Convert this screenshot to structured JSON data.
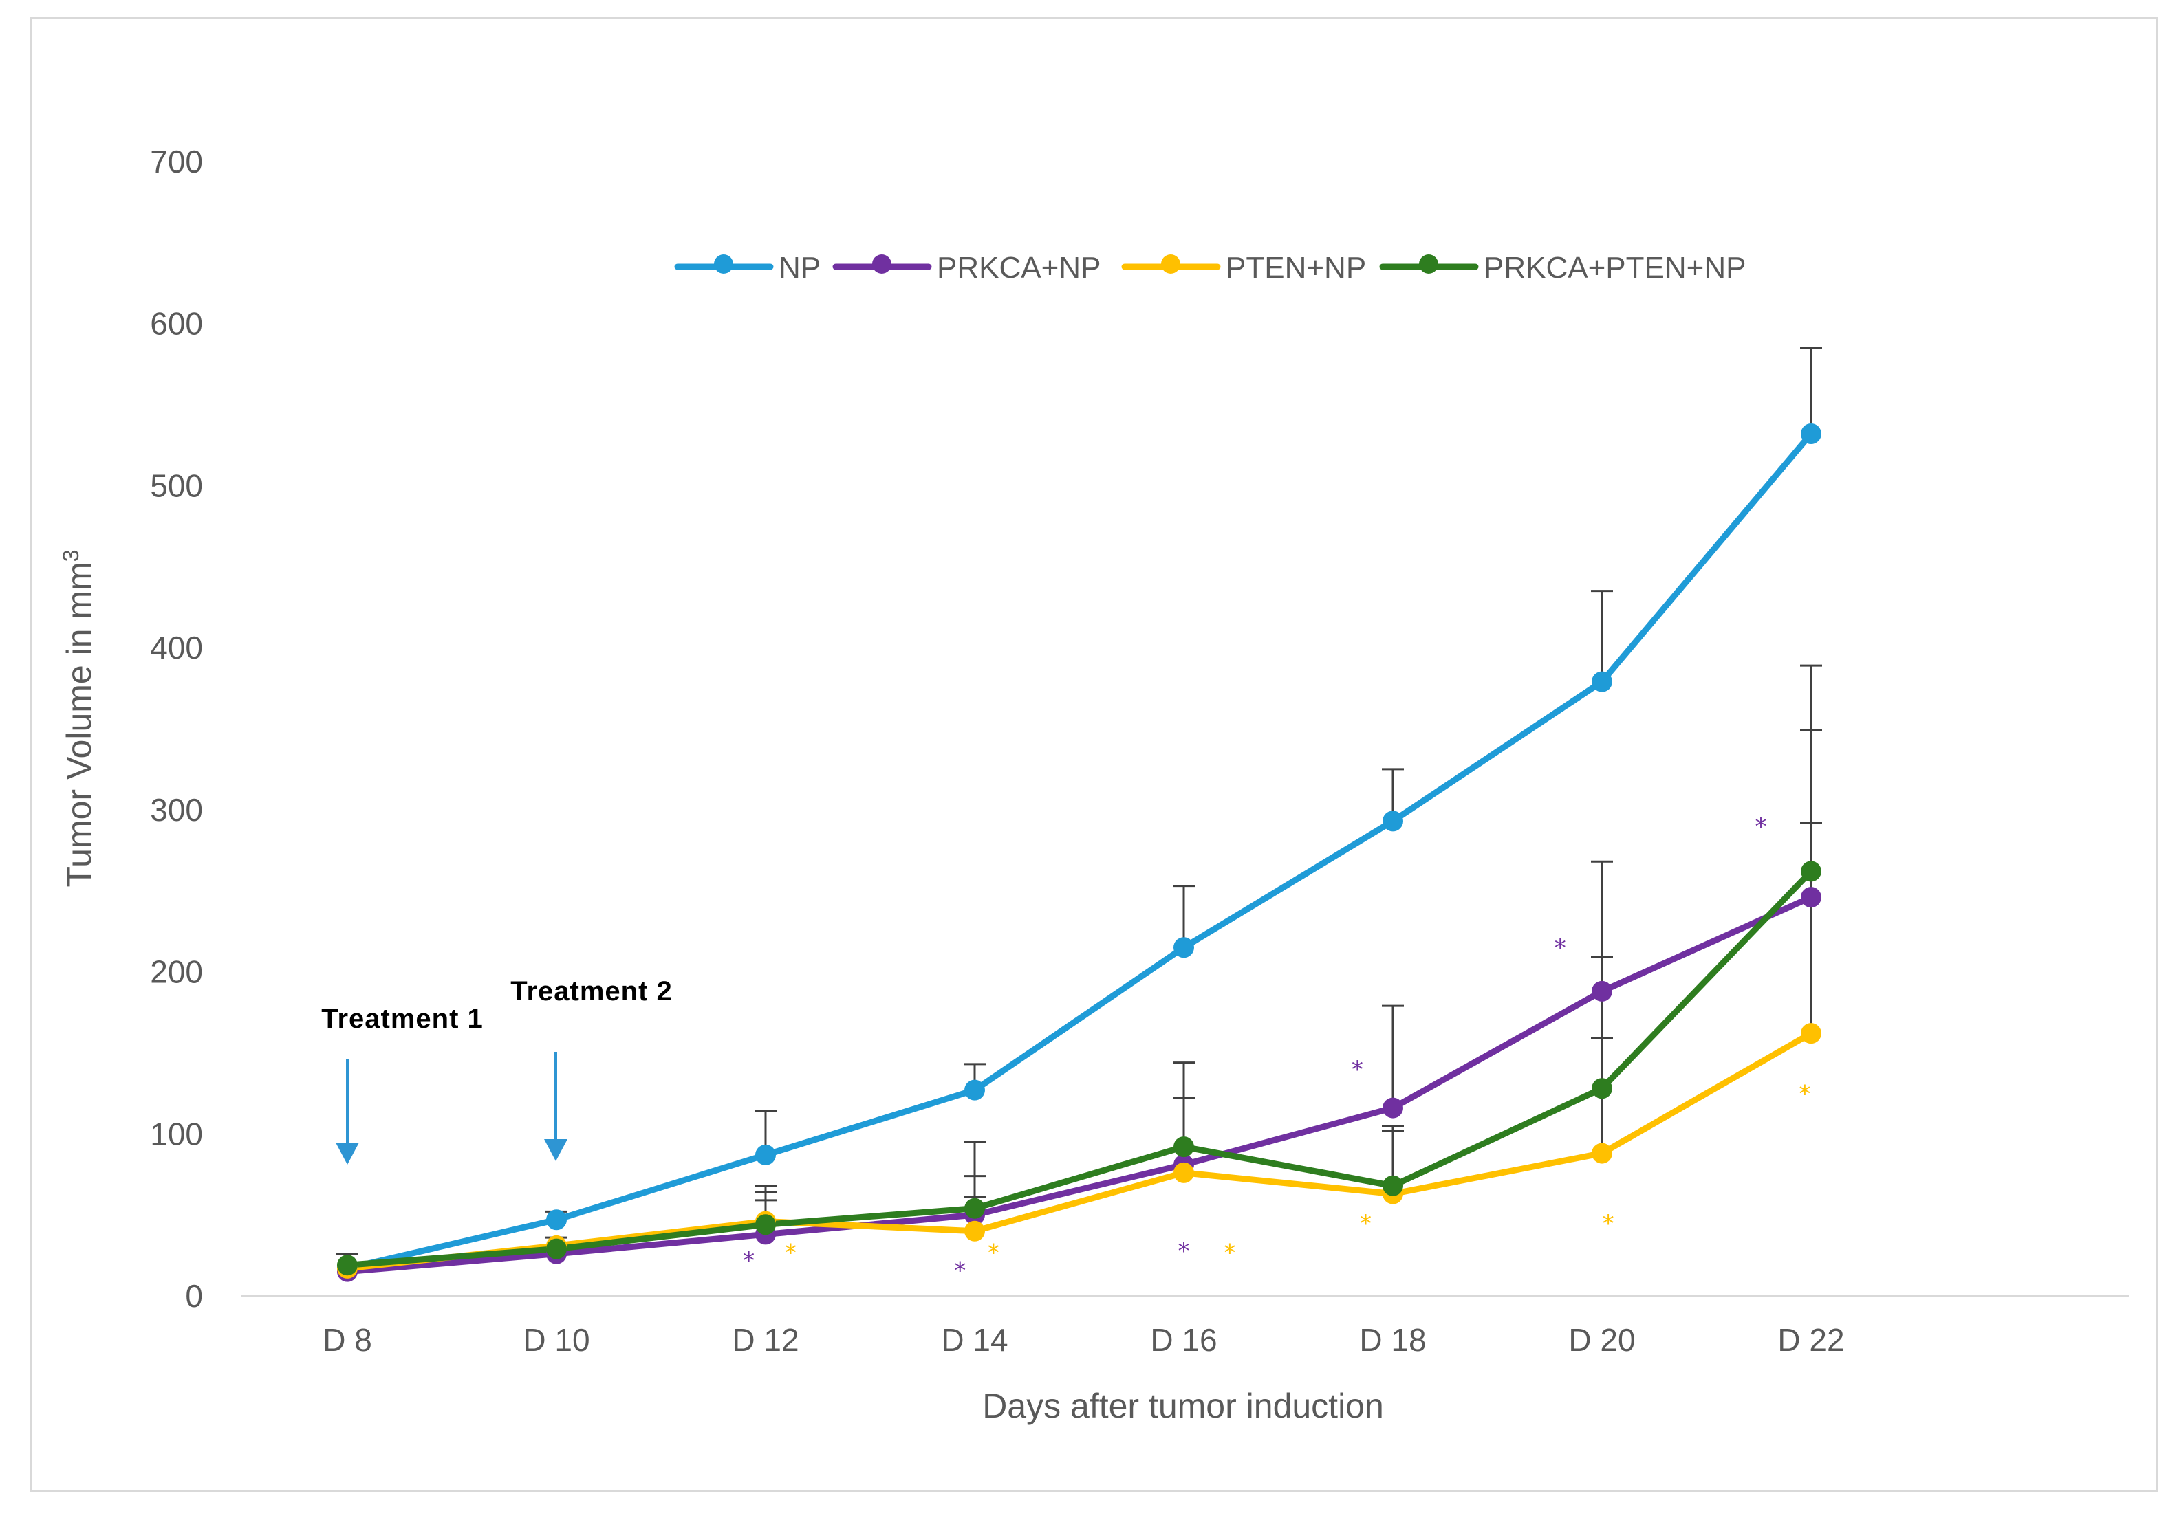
{
  "chart_data": {
    "type": "line",
    "title": "",
    "xlabel": "Days after tumor induction",
    "ylabel": "Tumor Volume in mm",
    "ylabel_superscript": "3",
    "categories": [
      "D 8",
      "D 10",
      "D 12",
      "D 14",
      "D 16",
      "D 18",
      "D 20",
      "D 22"
    ],
    "ylim": [
      0,
      700
    ],
    "yticks": [
      0,
      100,
      200,
      300,
      400,
      500,
      600,
      700
    ],
    "grid": false,
    "legend_position": "top",
    "series": [
      {
        "name": "NP",
        "color": "#1f9bd7",
        "values": [
          17,
          47,
          87,
          127,
          215,
          293,
          379,
          532
        ],
        "error_upper": [
          null,
          52,
          114,
          143,
          253,
          325,
          435,
          585
        ]
      },
      {
        "name": "PRKCA+NP",
        "color": "#7030a0",
        "values": [
          15,
          26,
          38,
          50,
          81,
          116,
          188,
          246
        ],
        "error_upper": [
          null,
          null,
          59,
          74,
          122,
          179,
          268,
          389
        ]
      },
      {
        "name": "PTEN+NP",
        "color": "#ffc000",
        "values": [
          17,
          31,
          46,
          40,
          76,
          63,
          88,
          162
        ],
        "error_upper": [
          null,
          null,
          64,
          61,
          122,
          102,
          159,
          292
        ]
      },
      {
        "name": "PRKCA+PTEN+NP",
        "color": "#2e7d1f",
        "values": [
          19,
          29,
          44,
          54,
          92,
          68,
          128,
          262
        ],
        "error_upper": [
          26,
          36,
          68,
          95,
          144,
          105,
          209,
          349
        ]
      }
    ],
    "significance_marks": [
      {
        "symbol": "*",
        "color": "#7030a0",
        "category": "D 12",
        "value": 22,
        "offset": -0.08
      },
      {
        "symbol": "*",
        "color": "#ffc000",
        "category": "D 12",
        "value": 27,
        "offset": 0.12
      },
      {
        "symbol": "*",
        "color": "#7030a0",
        "category": "D 14",
        "value": 16,
        "offset": -0.07
      },
      {
        "symbol": "*",
        "color": "#ffc000",
        "category": "D 14",
        "value": 27,
        "offset": 0.09
      },
      {
        "symbol": "*",
        "color": "#7030a0",
        "category": "D 16",
        "value": 28,
        "offset": 0.0
      },
      {
        "symbol": "*",
        "color": "#ffc000",
        "category": "D 16",
        "value": 27,
        "offset": 0.22
      },
      {
        "symbol": "*",
        "color": "#7030a0",
        "category": "D 18",
        "value": 140,
        "offset": -0.17
      },
      {
        "symbol": "*",
        "color": "#ffc000",
        "category": "D 18",
        "value": 45,
        "offset": -0.13
      },
      {
        "symbol": "*",
        "color": "#7030a0",
        "category": "D 20",
        "value": 215,
        "offset": -0.2
      },
      {
        "symbol": "*",
        "color": "#ffc000",
        "category": "D 20",
        "value": 45,
        "offset": 0.03
      },
      {
        "symbol": "*",
        "color": "#7030a0",
        "category": "D 22",
        "value": 290,
        "offset": -0.24
      },
      {
        "symbol": "*",
        "color": "#ffc000",
        "category": "D 22",
        "value": 125,
        "offset": -0.03
      }
    ],
    "annotations": [
      {
        "text": "Treatment 1",
        "category": "D 8"
      },
      {
        "text": "Treatment 2",
        "category": "D 10"
      }
    ]
  }
}
